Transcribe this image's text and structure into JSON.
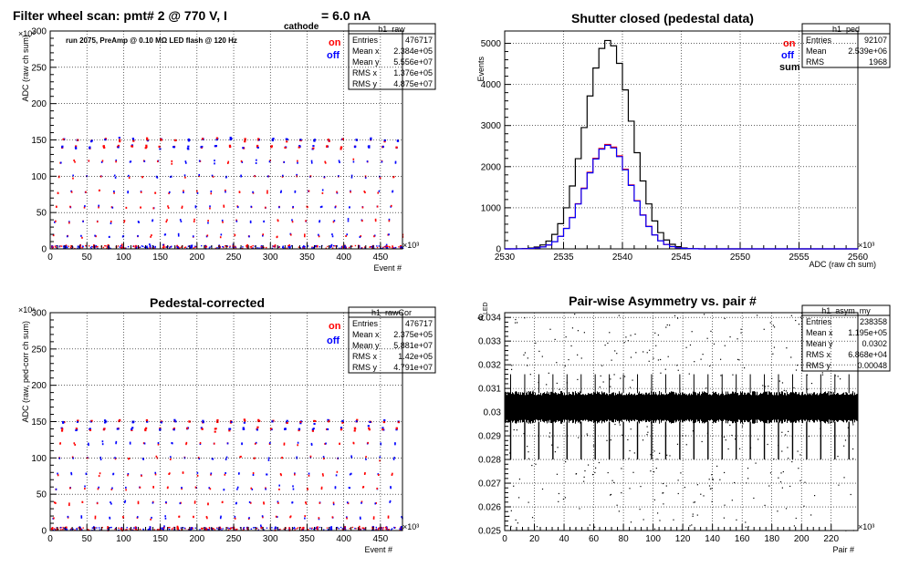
{
  "colors": {
    "on": "#ff0000",
    "off": "#0000ff",
    "sum": "#000000",
    "axis": "#000000",
    "grid": "#000000",
    "background": "#ffffff"
  },
  "chart_data": [
    {
      "type": "scatter",
      "title": "Filter wheel scan: pmt#   2 @   770 V, I",
      "title_sub": "cathode",
      "title_tail": "= 6.0 nA",
      "run_note": "run 2075, PreAmp @ 0.10 MΩ   LED flash @  120 Hz",
      "xlabel": "Event #",
      "ylabel": "ADC (raw ch sum)",
      "x_exponent": "×10³",
      "y_exponent": "×10⁶",
      "xlim": [
        0,
        480
      ],
      "ylim": [
        0,
        300
      ],
      "xticks": [
        0,
        50,
        100,
        150,
        200,
        250,
        300,
        350,
        400,
        450
      ],
      "yticks": [
        0,
        50,
        100,
        150,
        200,
        250,
        300
      ],
      "grid": true,
      "legend": {
        "placement": "top-right",
        "entries": [
          "on",
          "off"
        ]
      },
      "stats": {
        "name": "h1_raw",
        "rows": [
          [
            "Entries",
            "476717"
          ],
          [
            "Mean x",
            "2.384e+05"
          ],
          [
            "Mean y",
            "5.556e+07"
          ],
          [
            "RMS x",
            "1.376e+05"
          ],
          [
            "RMS y",
            "4.875e+07"
          ]
        ]
      },
      "levels": [
        3,
        18,
        38,
        58,
        78,
        100,
        120,
        140,
        150
      ],
      "cycle_period": 19
    },
    {
      "type": "bar",
      "title": "Shutter closed (pedestal data)",
      "xlabel": "ADC (raw ch sum)",
      "ylabel": "Events",
      "x_exponent": "×10³",
      "xlim": [
        2530,
        2560
      ],
      "ylim": [
        0,
        5300
      ],
      "xticks": [
        2530,
        2535,
        2540,
        2545,
        2550,
        2555,
        2560
      ],
      "yticks": [
        0,
        1000,
        2000,
        3000,
        4000,
        5000
      ],
      "grid": true,
      "legend": {
        "placement": "top-right",
        "entries": [
          "on",
          "off",
          "sum"
        ]
      },
      "stats": {
        "name": "h1_ped",
        "rows": [
          [
            "Entries",
            "92107"
          ],
          [
            "Mean",
            "2.539e+06"
          ],
          [
            "RMS",
            "1968"
          ]
        ]
      },
      "series": [
        {
          "name": "sum",
          "mean": 2538.8,
          "sigma": 1.97,
          "peak": 5070
        },
        {
          "name": "on",
          "mean": 2538.8,
          "sigma": 1.97,
          "peak": 2540
        },
        {
          "name": "off",
          "mean": 2538.8,
          "sigma": 1.97,
          "peak": 2520
        }
      ],
      "bin_width": 0.5
    },
    {
      "type": "scatter",
      "title": "Pedestal-corrected",
      "xlabel": "Event #",
      "ylabel": "ADC (raw, ped-corr ch sum)",
      "x_exponent": "×10³",
      "y_exponent": "×10⁶",
      "xlim": [
        0,
        480
      ],
      "ylim": [
        0,
        300
      ],
      "xticks": [
        0,
        50,
        100,
        150,
        200,
        250,
        300,
        350,
        400,
        450
      ],
      "yticks": [
        0,
        50,
        100,
        150,
        200,
        250,
        300
      ],
      "grid": true,
      "legend": {
        "placement": "top-right",
        "entries": [
          "on",
          "off"
        ]
      },
      "stats": {
        "name": "h1_rawCor",
        "rows": [
          [
            "Entries",
            "476717"
          ],
          [
            "Mean x",
            "2.375e+05"
          ],
          [
            "Mean y",
            "5.881e+07"
          ],
          [
            "RMS x",
            "1.42e+05"
          ],
          [
            "RMS y",
            "4.791e+07"
          ]
        ]
      },
      "levels": [
        3,
        18,
        38,
        58,
        78,
        100,
        120,
        140,
        150
      ],
      "cycle_period": 19
    },
    {
      "type": "scatter",
      "title": "Pair-wise Asymmetry vs. pair #",
      "xlabel": "Pair #",
      "ylabel": "A",
      "ylabel_sub": "LED",
      "x_exponent": "×10³",
      "xlim": [
        0,
        238
      ],
      "ylim": [
        0.025,
        0.0342
      ],
      "xticks": [
        0,
        20,
        40,
        60,
        80,
        100,
        120,
        140,
        160,
        180,
        200,
        220
      ],
      "yticks": [
        0.025,
        0.026,
        0.027,
        0.028,
        0.029,
        0.03,
        0.031,
        0.032,
        0.033,
        0.034
      ],
      "ytick_labels": [
        "0.025",
        "0.026",
        "0.027",
        "0.028",
        "0.029",
        "0.03",
        "0.031",
        "0.032",
        "0.033",
        "0.034"
      ],
      "grid": true,
      "stats": {
        "name": "h1_asym_my",
        "rows": [
          [
            "Entries",
            "238358"
          ],
          [
            "Mean x",
            "1.195e+05"
          ],
          [
            "Mean y",
            "0.0302"
          ],
          [
            "RMS x",
            "6.868e+04"
          ],
          [
            "RMS y",
            "0.00048"
          ]
        ]
      },
      "band_center": 0.0302,
      "band_halfwidth": 0.0006,
      "spike_period": 9.5
    }
  ]
}
